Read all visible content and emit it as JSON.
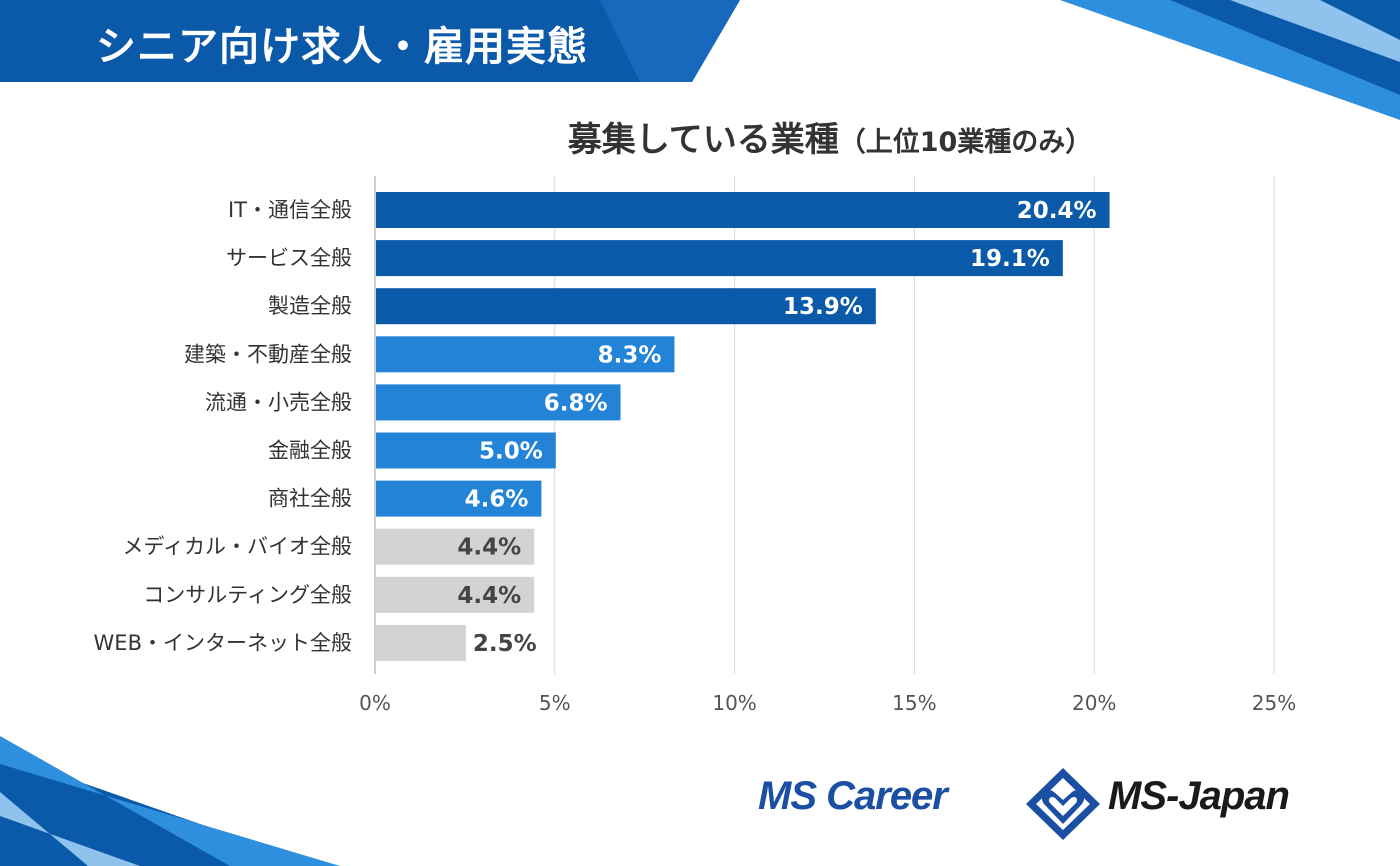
{
  "header": {
    "title": "シニア向け求人・雇用実態"
  },
  "chart_data": {
    "type": "bar",
    "orientation": "horizontal",
    "title": "募集している業種",
    "title_note": "（上位10業種のみ）",
    "categories": [
      "IT・通信全般",
      "サービス全般",
      "製造全般",
      "建築・不動産全般",
      "流通・小売全般",
      "金融全般",
      "商社全般",
      "メディカル・バイオ全般",
      "コンサルティング全般",
      "WEB・インターネット全般"
    ],
    "values": [
      20.4,
      19.1,
      13.9,
      8.3,
      6.8,
      5.0,
      4.6,
      4.4,
      4.4,
      2.5
    ],
    "value_labels": [
      "20.4%",
      "19.1%",
      "13.9%",
      "8.3%",
      "6.8%",
      "5.0%",
      "4.6%",
      "4.4%",
      "4.4%",
      "2.5%"
    ],
    "bar_colors": [
      "#0b5aaa",
      "#0b5aaa",
      "#0b5aaa",
      "#2383d6",
      "#2383d6",
      "#2383d6",
      "#2383d6",
      "#d3d3d3",
      "#d3d3d3",
      "#d3d3d3"
    ],
    "label_colors": [
      "#ffffff",
      "#ffffff",
      "#ffffff",
      "#ffffff",
      "#ffffff",
      "#ffffff",
      "#ffffff",
      "#444444",
      "#444444",
      "#444444"
    ],
    "xlim": [
      0,
      25
    ],
    "xticks": [
      0,
      5,
      10,
      15,
      20,
      25
    ],
    "xtick_labels": [
      "0%",
      "5%",
      "10%",
      "15%",
      "20%",
      "25%"
    ],
    "grid": true,
    "xlabel": "",
    "ylabel": ""
  },
  "logos": {
    "left": "MS Career",
    "right": "MS-Japan"
  },
  "colors": {
    "brand_dark": "#0b5aaa",
    "brand_light": "#2383d6",
    "gray": "#d3d3d3"
  }
}
